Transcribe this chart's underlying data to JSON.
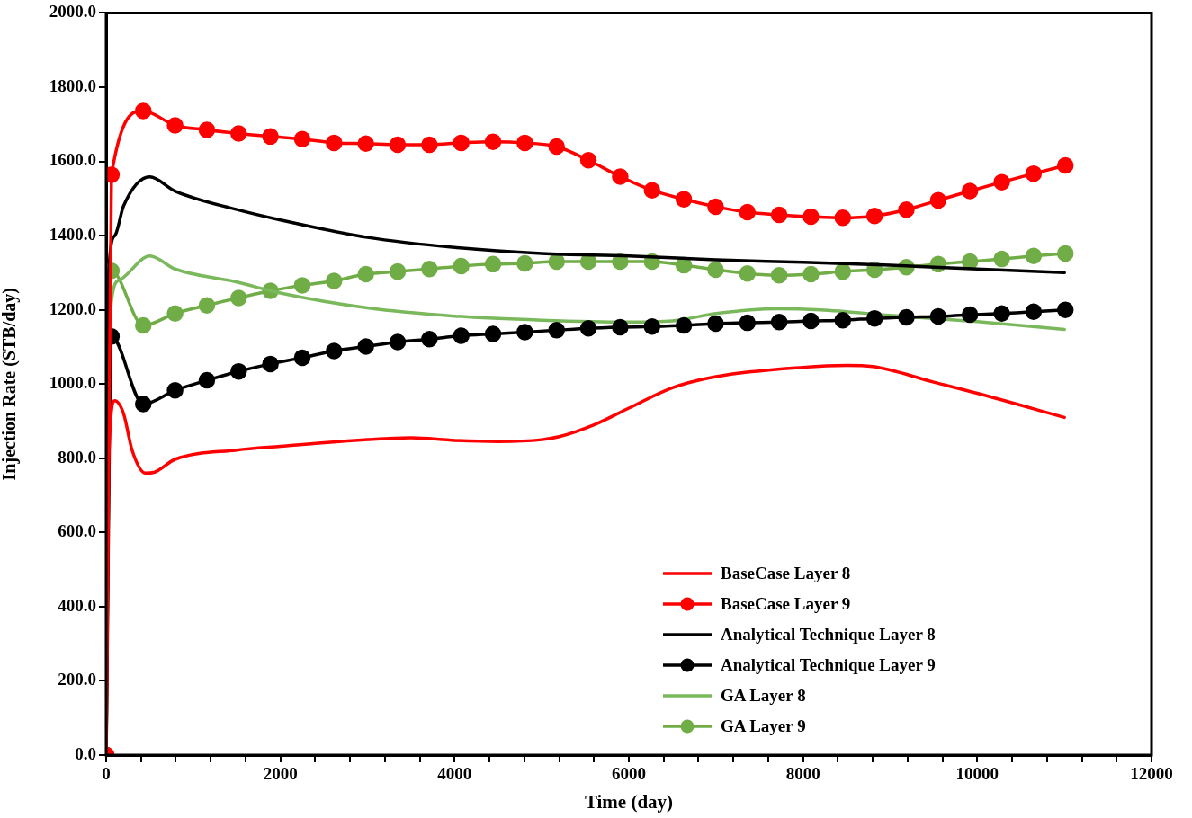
{
  "chart_data": {
    "type": "line",
    "xlabel": "Time (day)",
    "ylabel": "Injection Rate (STB/day)",
    "xlim": [
      0,
      12000
    ],
    "xticks": [
      0,
      {
        "value": 400,
        "label": null
      },
      {
        "value": 800,
        "label": null
      },
      {
        "value": 1200,
        "label": null
      },
      {
        "value": 1600,
        "label": null
      },
      2000,
      {
        "value": 2400,
        "label": null
      },
      {
        "value": 2800,
        "label": null
      },
      {
        "value": 3200,
        "label": null
      },
      {
        "value": 3600,
        "label": null
      },
      4000,
      {
        "value": 4400,
        "label": null
      },
      {
        "value": 4800,
        "label": null
      },
      {
        "value": 5200,
        "label": null
      },
      {
        "value": 5600,
        "label": null
      },
      6000,
      {
        "value": 6400,
        "label": null
      },
      {
        "value": 6800,
        "label": null
      },
      {
        "value": 7200,
        "label": null
      },
      {
        "value": 7600,
        "label": null
      },
      8000,
      {
        "value": 8400,
        "label": null
      },
      {
        "value": 8800,
        "label": null
      },
      {
        "value": 9200,
        "label": null
      },
      {
        "value": 9600,
        "label": null
      },
      10000,
      {
        "value": 10400,
        "label": null
      },
      {
        "value": 10800,
        "label": null
      },
      {
        "value": 11200,
        "label": null
      },
      {
        "value": 11600,
        "label": null
      },
      12000
    ],
    "ylim": [
      0,
      2000
    ],
    "yticks": [
      {
        "value": 0,
        "label": "0.0"
      },
      {
        "value": 200,
        "label": "200.0"
      },
      {
        "value": 400,
        "label": "400.0"
      },
      {
        "value": 600,
        "label": "600.0"
      },
      {
        "value": 800,
        "label": "800.0"
      },
      {
        "value": 1000,
        "label": "1000.0"
      },
      {
        "value": 1200,
        "label": "1200.0"
      },
      {
        "value": 1400,
        "label": "1400.0"
      },
      {
        "value": 1600,
        "label": "1600.0"
      },
      {
        "value": 1800,
        "label": "1800.0"
      },
      {
        "value": 2000,
        "label": "2000.0"
      }
    ],
    "grid": false,
    "legend": "bottom right",
    "series": [
      {
        "name": "BaseCase Layer 8",
        "color": "#ff0000",
        "marker": "none",
        "x": [
          0,
          30,
          100,
          200,
          300,
          450,
          550,
          790,
          1500,
          2000,
          3000,
          3500,
          4000,
          4500,
          5000,
          5200,
          5600,
          6000,
          6500,
          7000,
          8000,
          8500,
          8800,
          9500,
          10000,
          11000
        ],
        "values": [
          0,
          800,
          955,
          920,
          820,
          760,
          762,
          797,
          822,
          832,
          850,
          855,
          848,
          845,
          850,
          858,
          890,
          935,
          990,
          1020,
          1045,
          1050,
          1047,
          1005,
          975,
          910
        ]
      },
      {
        "name": "BaseCase Layer 9",
        "color": "#ff0000",
        "marker": "circle",
        "x": [
          0,
          61,
          426,
          791,
          1156,
          1521,
          1886,
          2251,
          2616,
          2981,
          3346,
          3711,
          4076,
          4441,
          4806,
          5171,
          5536,
          5901,
          6266,
          6631,
          6996,
          7361,
          7726,
          8091,
          8456,
          8821,
          9186,
          9551,
          9916,
          10281,
          10646,
          11011
        ],
        "values": [
          0,
          1564,
          1736,
          1697,
          1685,
          1675,
          1667,
          1660,
          1650,
          1648,
          1645,
          1645,
          1650,
          1653,
          1650,
          1640,
          1603,
          1559,
          1522,
          1498,
          1478,
          1463,
          1456,
          1451,
          1448,
          1453,
          1470,
          1495,
          1520,
          1544,
          1567,
          1589
        ]
      },
      {
        "name": "Analytical Technique Layer 8",
        "color": "#000000",
        "marker": "none",
        "x": [
          0,
          30,
          100,
          200,
          500,
          790,
          1500,
          2000,
          3000,
          4000,
          5000,
          6000,
          7000,
          8000,
          9000,
          10000,
          11000
        ],
        "values": [
          0,
          1300,
          1400,
          1480,
          1558,
          1520,
          1470,
          1442,
          1395,
          1368,
          1352,
          1345,
          1335,
          1328,
          1320,
          1310,
          1300
        ]
      },
      {
        "name": "Analytical Technique Layer 9",
        "color": "#000000",
        "marker": "circle",
        "x": [
          0,
          61,
          426,
          791,
          1156,
          1521,
          1886,
          2251,
          2616,
          2981,
          3346,
          3711,
          4076,
          4441,
          4806,
          5171,
          5536,
          5901,
          6266,
          6631,
          6996,
          7361,
          7726,
          8091,
          8456,
          8821,
          9186,
          9551,
          9916,
          10281,
          10646,
          11011
        ],
        "values": [
          0,
          1128,
          946,
          983,
          1010,
          1034,
          1054,
          1071,
          1089,
          1101,
          1113,
          1121,
          1130,
          1135,
          1140,
          1145,
          1150,
          1153,
          1155,
          1158,
          1163,
          1165,
          1167,
          1170,
          1172,
          1177,
          1180,
          1182,
          1187,
          1190,
          1195,
          1200
        ]
      },
      {
        "name": "GA Layer 8",
        "color": "#7ab85c",
        "marker": "none",
        "x": [
          0,
          50,
          150,
          500,
          790,
          1500,
          2000,
          3000,
          4000,
          5000,
          6000,
          6500,
          7000,
          7700,
          8200,
          9000,
          10000,
          11000
        ],
        "values": [
          0,
          1200,
          1280,
          1345,
          1310,
          1275,
          1245,
          1205,
          1183,
          1172,
          1167,
          1170,
          1190,
          1203,
          1200,
          1185,
          1168,
          1147
        ]
      },
      {
        "name": "GA Layer 9",
        "color": "#70ad47",
        "marker": "circle",
        "x": [
          0,
          61,
          426,
          791,
          1156,
          1521,
          1886,
          2251,
          2616,
          2981,
          3346,
          3711,
          4076,
          4441,
          4806,
          5171,
          5536,
          5901,
          6266,
          6631,
          6996,
          7361,
          7726,
          8091,
          8456,
          8821,
          9186,
          9551,
          9916,
          10281,
          10646,
          11011
        ],
        "values": [
          0,
          1305,
          1158,
          1190,
          1212,
          1232,
          1251,
          1266,
          1278,
          1296,
          1303,
          1310,
          1318,
          1323,
          1325,
          1330,
          1330,
          1330,
          1330,
          1320,
          1308,
          1298,
          1293,
          1296,
          1303,
          1308,
          1315,
          1323,
          1330,
          1337,
          1345,
          1352
        ]
      }
    ]
  }
}
